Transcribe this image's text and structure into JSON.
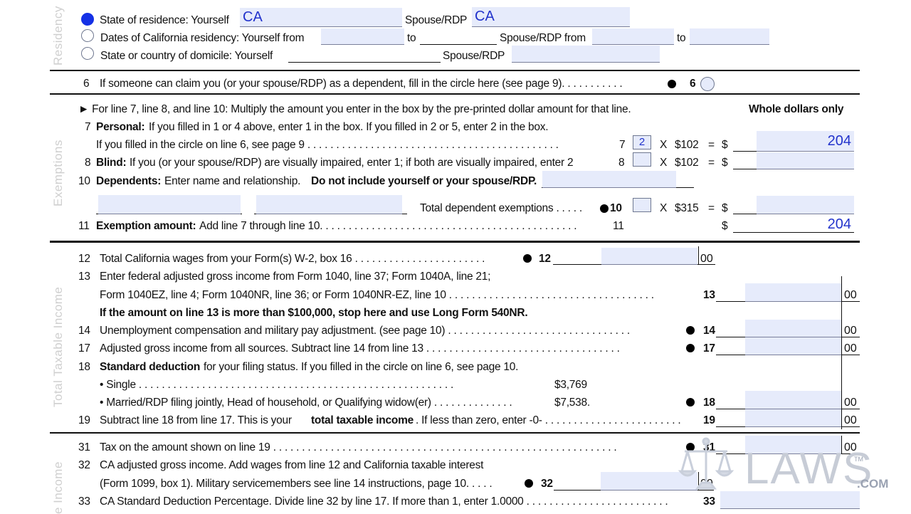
{
  "side_labels": {
    "residency": "Residency",
    "exemptions": "Exemptions",
    "taxable": "Total Taxable Income",
    "income": "e Income"
  },
  "residency": {
    "row1": {
      "label": "State of residence: Yourself",
      "yourself_value": "CA",
      "spouse_label": "Spouse/RDP",
      "spouse_value": "CA"
    },
    "row2": {
      "label": "Dates of California residency: Yourself from",
      "to1": "to",
      "spouse_label": "Spouse/RDP from",
      "to2": "to"
    },
    "row3": {
      "label": "State or country of domicile: Yourself",
      "spouse_label": "Spouse/RDP"
    }
  },
  "line6": {
    "num": "6",
    "text": "If someone can claim you (or your spouse/RDP) as a dependent, fill in the circle here (see page 9). . . . . . . . . . .",
    "ref": "6"
  },
  "exemptions": {
    "intro": "► For line 7, line 8, and line 10: Multiply the amount you enter in the box by the pre-printed dollar amount for that line.",
    "whole_dollars": "Whole dollars only",
    "line7": {
      "num": "7",
      "title": "Personal:",
      "text": "If you filled in 1 or 4 above, enter 1 in the box. If you filled in 2 or 5, enter 2 in the box.",
      "text2": "If you filled in the circle on line 6, see page 9 . . . . . . . . . . . . . . . . . . . . . . . . . . . . . . . . . . . . . . . . . . . .",
      "ref": "7",
      "box_value": "2",
      "mult": "X",
      "amount": "$102",
      "eq": "=",
      "dollar": "$",
      "result": "204"
    },
    "line8": {
      "num": "8",
      "title": "Blind:",
      "text": "If you (or your spouse/RDP) are visually impaired, enter 1; if both are visually impaired, enter 2",
      "ref": "8",
      "mult": "X",
      "amount": "$102",
      "eq": "=",
      "dollar": "$"
    },
    "line10": {
      "num": "10",
      "title": "Dependents:",
      "text": "Enter name and relationship.",
      "bold_text": "Do not include yourself or your spouse/RDP.",
      "total_label": "Total dependent exemptions . . . . .",
      "ref": "10",
      "mult": "X",
      "amount": "$315",
      "eq": "=",
      "dollar": "$"
    },
    "line11": {
      "num": "11",
      "title": "Exemption amount:",
      "text": "Add line 7 through line 10. . . . . . . . . . . . . . . . . . . . . . . . . . . . . . . . . . . . . . . . . . . . .",
      "ref": "11",
      "dollar": "$",
      "result": "204"
    }
  },
  "taxable": {
    "line12": {
      "num": "12",
      "text": "Total California wages from your Form(s) W-2, box 16 . . . . . . . . . . . . . . . . . . . . . . .",
      "ref": "12",
      "cents": "00"
    },
    "line13": {
      "num": "13",
      "text": "Enter federal adjusted gross income from Form 1040, line 37; Form 1040A, line 21;",
      "text2": "Form 1040EZ, line 4; Form 1040NR, line 36; or Form 1040NR-EZ, line 10 . . . . . . . . . . . . . . . . . . . . . . . . . . . . . . . . . . . .",
      "ref": "13",
      "cents": "00"
    },
    "warning": "If the amount on line 13 is more than $100,000, stop here and use Long Form 540NR.",
    "line14": {
      "num": "14",
      "text": "Unemployment compensation and military pay adjustment. (see page 10) . . . . . . . . . . . . . . . . . . . . . . . . . . . . . . . .",
      "ref": "14",
      "cents": "00"
    },
    "line17": {
      "num": "17",
      "text": "Adjusted gross income from all sources. Subtract line 14 from line 13 . . . . . . . . . . . . . . . . . . . . . . . . . . . . . . . . . .",
      "ref": "17",
      "cents": "00"
    },
    "line18": {
      "num": "18",
      "title": "Standard deduction",
      "text": "for your filing status. If you filled in the circle on line 6, see page 10.",
      "single_label": "• Single . . . . . . . . . . . . . . . . . . . . . . . . . . . . . . . . . . . . . . . . . . . . . . . . . . . . . . .",
      "single_amount": "$3,769",
      "married_label": "• Married/RDP filing jointly, Head of household, or Qualifying widow(er) . . . . . . . . . . . . . .",
      "married_amount": "$7,538.",
      "ref": "18",
      "cents": "00"
    },
    "line19": {
      "num": "19",
      "text_pre": "Subtract line 18 from line 17. This is your",
      "bold": "total taxable income",
      "text_post": ". If less than zero, enter -0- . . . . . . . . . . . . . . . . . . . . . . . .",
      "ref": "19",
      "cents": "00"
    }
  },
  "tax": {
    "line31": {
      "num": "31",
      "text": "Tax on the amount shown on line 19 . . . . . . . . . . . . . . . . . . . . . . . . . . . . . . . . . . . . . . . . . . . . . . . . . . . . . . . . . . . .",
      "ref": "31",
      "cents": "00"
    },
    "line32": {
      "num": "32",
      "text": "CA adjusted gross income. Add wages from line 12 and California taxable interest",
      "text2": "(Form 1099, box 1). Military servicemembers see line 14 instructions, page 10. . . . .",
      "ref": "32",
      "cents": "00"
    },
    "line33": {
      "num": "33",
      "text": "CA Standard Deduction Percentage. Divide line 32 by line 17. If more than 1, enter 1.0000 . . . . . . . . . . . . . . . . . . . . . . . . .",
      "ref": "33"
    }
  },
  "watermark": {
    "text": "LAWS",
    "suffix": ".COM",
    "tm": "TM"
  },
  "colors": {
    "field_bg": "#e6ebfb",
    "field_text": "#2233cc",
    "radio_selected": "#1531e6",
    "side_label": "#cfcfcf"
  }
}
